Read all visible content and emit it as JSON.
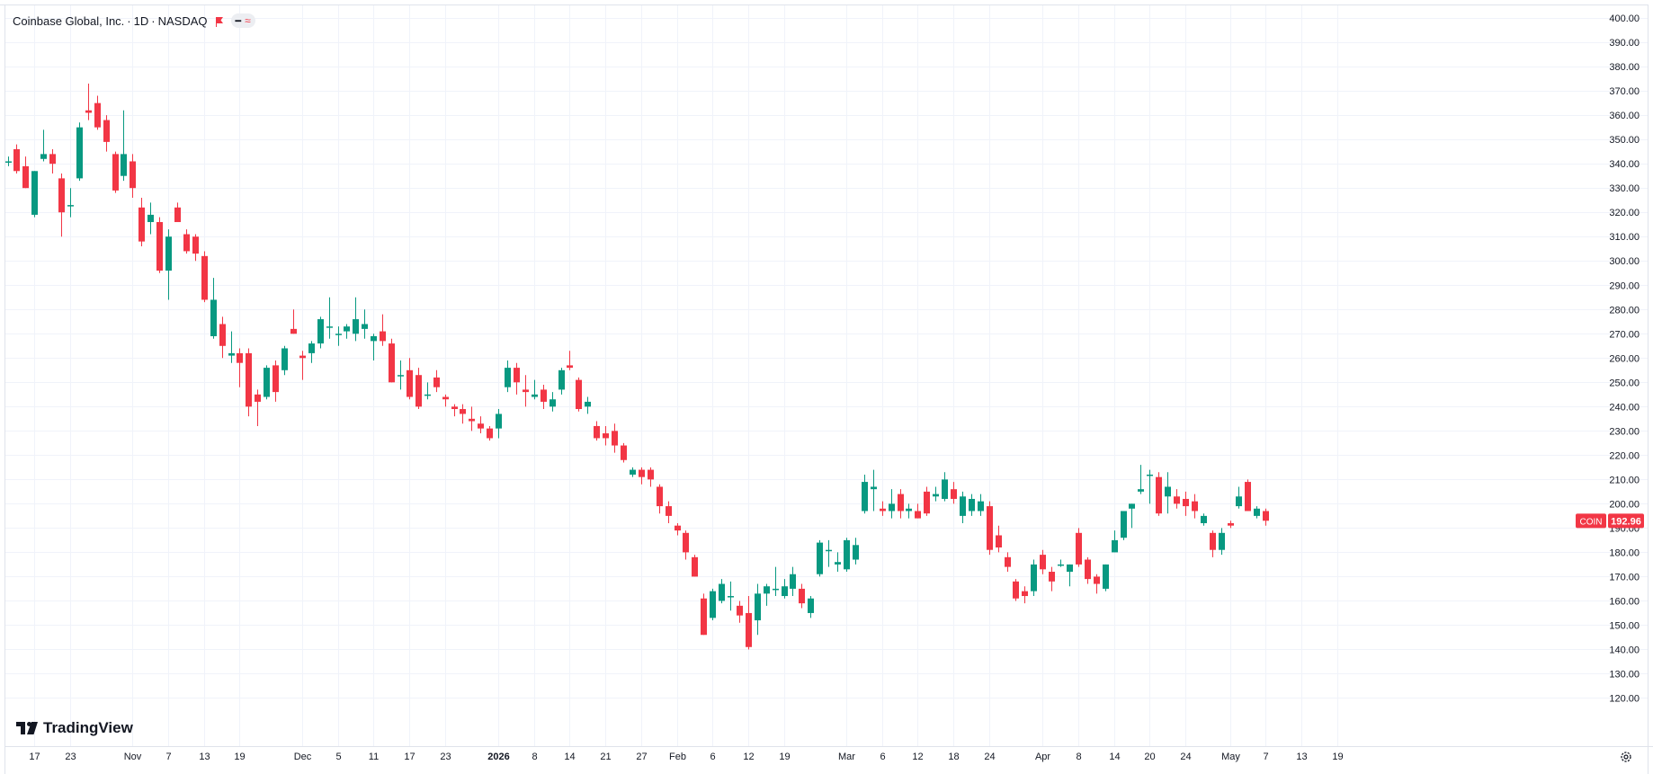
{
  "header": {
    "symbol_name": "Coinbase Global, Inc.",
    "interval": "1D",
    "exchange": "NASDAQ",
    "separator": "·",
    "pill_dash": "━",
    "pill_approx": "≈"
  },
  "logo": {
    "text": "TradingView",
    "icon": "tradingview-logo-icon"
  },
  "colors": {
    "up": "#089981",
    "down": "#f23645",
    "grid": "#f0f3fa",
    "text": "#131722",
    "axis_text": "#131722"
  },
  "price_label": {
    "ticker": "COIN",
    "value": "192.96",
    "numeric": 192.96
  },
  "settings_icon": "gear-icon",
  "chart_data": {
    "type": "candlestick",
    "title": "Coinbase Global, Inc. · 1D · NASDAQ",
    "ylim": [
      115,
      403
    ],
    "y_ticks": [
      120,
      130,
      140,
      150,
      160,
      170,
      180,
      190,
      200,
      210,
      220,
      230,
      240,
      250,
      260,
      270,
      280,
      290,
      300,
      310,
      320,
      330,
      340,
      350,
      360,
      370,
      380,
      390,
      400
    ],
    "y_tick_labels": [
      "120.00",
      "130.00",
      "140.00",
      "150.00",
      "160.00",
      "170.00",
      "180.00",
      "190.00",
      "200.00",
      "210.00",
      "220.00",
      "230.00",
      "240.00",
      "250.00",
      "260.00",
      "270.00",
      "280.00",
      "290.00",
      "300.00",
      "310.00",
      "320.00",
      "330.00",
      "340.00",
      "350.00",
      "360.00",
      "370.00",
      "380.00",
      "390.00",
      "400.00"
    ],
    "x_ticks": [
      {
        "label": "17",
        "index": 3
      },
      {
        "label": "23",
        "index": 7
      },
      {
        "label": "Nov",
        "index": 14,
        "bold": false
      },
      {
        "label": "7",
        "index": 18
      },
      {
        "label": "13",
        "index": 22
      },
      {
        "label": "19",
        "index": 26
      },
      {
        "label": "Dec",
        "index": 33
      },
      {
        "label": "5",
        "index": 37
      },
      {
        "label": "11",
        "index": 41
      },
      {
        "label": "17",
        "index": 45
      },
      {
        "label": "23",
        "index": 49
      },
      {
        "label": "2026",
        "index": 55,
        "bold": true
      },
      {
        "label": "8",
        "index": 59
      },
      {
        "label": "14",
        "index": 63
      },
      {
        "label": "21",
        "index": 67
      },
      {
        "label": "27",
        "index": 71
      },
      {
        "label": "Feb",
        "index": 75
      },
      {
        "label": "6",
        "index": 79
      },
      {
        "label": "12",
        "index": 83
      },
      {
        "label": "19",
        "index": 87
      },
      {
        "label": "Mar",
        "index": 94
      },
      {
        "label": "6",
        "index": 98
      },
      {
        "label": "12",
        "index": 102
      },
      {
        "label": "18",
        "index": 106
      },
      {
        "label": "24",
        "index": 110
      },
      {
        "label": "Apr",
        "index": 116
      },
      {
        "label": "8",
        "index": 120
      },
      {
        "label": "14",
        "index": 124
      },
      {
        "label": "20",
        "index": 128
      },
      {
        "label": "24",
        "index": 132
      },
      {
        "label": "May",
        "index": 137
      },
      {
        "label": "7",
        "index": 141
      },
      {
        "label": "13",
        "index": 145
      },
      {
        "label": "19",
        "index": 149
      }
    ],
    "candles": [
      {
        "o": 341,
        "h": 343,
        "l": 339,
        "c": 341
      },
      {
        "o": 346,
        "h": 348,
        "l": 336,
        "c": 337
      },
      {
        "o": 339,
        "h": 343,
        "l": 330,
        "c": 330
      },
      {
        "o": 319,
        "h": 337,
        "l": 318,
        "c": 337
      },
      {
        "o": 342,
        "h": 354,
        "l": 341,
        "c": 344
      },
      {
        "o": 344,
        "h": 346,
        "l": 336,
        "c": 340
      },
      {
        "o": 334,
        "h": 336,
        "l": 310,
        "c": 320
      },
      {
        "o": 323,
        "h": 330,
        "l": 318,
        "c": 323
      },
      {
        "o": 334,
        "h": 357,
        "l": 333,
        "c": 355
      },
      {
        "o": 362,
        "h": 373,
        "l": 358,
        "c": 361
      },
      {
        "o": 365,
        "h": 368,
        "l": 354,
        "c": 355
      },
      {
        "o": 358,
        "h": 360,
        "l": 345,
        "c": 349
      },
      {
        "o": 344,
        "h": 345,
        "l": 328,
        "c": 329
      },
      {
        "o": 335,
        "h": 362,
        "l": 333,
        "c": 344
      },
      {
        "o": 341,
        "h": 344,
        "l": 326,
        "c": 330
      },
      {
        "o": 322,
        "h": 326,
        "l": 306,
        "c": 308
      },
      {
        "o": 316,
        "h": 324,
        "l": 311,
        "c": 319
      },
      {
        "o": 316,
        "h": 318,
        "l": 295,
        "c": 296
      },
      {
        "o": 296,
        "h": 313,
        "l": 284,
        "c": 310
      },
      {
        "o": 322,
        "h": 324,
        "l": 316,
        "c": 316
      },
      {
        "o": 311,
        "h": 313,
        "l": 303,
        "c": 304
      },
      {
        "o": 310,
        "h": 311,
        "l": 300,
        "c": 303
      },
      {
        "o": 302,
        "h": 304,
        "l": 283,
        "c": 284
      },
      {
        "o": 269,
        "h": 293,
        "l": 268,
        "c": 284
      },
      {
        "o": 274,
        "h": 277,
        "l": 260,
        "c": 265
      },
      {
        "o": 261,
        "h": 271,
        "l": 258,
        "c": 262
      },
      {
        "o": 262,
        "h": 264,
        "l": 248,
        "c": 258
      },
      {
        "o": 262,
        "h": 264,
        "l": 236,
        "c": 240
      },
      {
        "o": 245,
        "h": 247,
        "l": 232,
        "c": 242
      },
      {
        "o": 244,
        "h": 257,
        "l": 243,
        "c": 256
      },
      {
        "o": 257,
        "h": 259,
        "l": 242,
        "c": 246
      },
      {
        "o": 255,
        "h": 265,
        "l": 253,
        "c": 264
      },
      {
        "o": 272,
        "h": 280,
        "l": 270,
        "c": 270
      },
      {
        "o": 261,
        "h": 263,
        "l": 251,
        "c": 260
      },
      {
        "o": 262,
        "h": 267,
        "l": 258,
        "c": 266
      },
      {
        "o": 266,
        "h": 277,
        "l": 264,
        "c": 276
      },
      {
        "o": 273,
        "h": 285,
        "l": 268,
        "c": 273
      },
      {
        "o": 270,
        "h": 273,
        "l": 265,
        "c": 270
      },
      {
        "o": 271,
        "h": 274,
        "l": 268,
        "c": 273
      },
      {
        "o": 270,
        "h": 285,
        "l": 267,
        "c": 276
      },
      {
        "o": 272,
        "h": 280,
        "l": 268,
        "c": 274
      },
      {
        "o": 267,
        "h": 270,
        "l": 259,
        "c": 269
      },
      {
        "o": 271,
        "h": 278,
        "l": 265,
        "c": 267
      },
      {
        "o": 266,
        "h": 268,
        "l": 250,
        "c": 250
      },
      {
        "o": 253,
        "h": 259,
        "l": 247,
        "c": 253
      },
      {
        "o": 255,
        "h": 260,
        "l": 243,
        "c": 244
      },
      {
        "o": 253,
        "h": 256,
        "l": 239,
        "c": 240
      },
      {
        "o": 245,
        "h": 250,
        "l": 243,
        "c": 245
      },
      {
        "o": 252,
        "h": 255,
        "l": 246,
        "c": 248
      },
      {
        "o": 244,
        "h": 245,
        "l": 240,
        "c": 243
      },
      {
        "o": 240,
        "h": 241,
        "l": 236,
        "c": 239
      },
      {
        "o": 239,
        "h": 241,
        "l": 233,
        "c": 237
      },
      {
        "o": 235,
        "h": 240,
        "l": 230,
        "c": 234
      },
      {
        "o": 233,
        "h": 236,
        "l": 229,
        "c": 231
      },
      {
        "o": 231,
        "h": 232,
        "l": 226,
        "c": 227
      },
      {
        "o": 231,
        "h": 239,
        "l": 227,
        "c": 237
      },
      {
        "o": 248,
        "h": 259,
        "l": 246,
        "c": 256
      },
      {
        "o": 256,
        "h": 258,
        "l": 245,
        "c": 250
      },
      {
        "o": 247,
        "h": 253,
        "l": 240,
        "c": 246
      },
      {
        "o": 244,
        "h": 251,
        "l": 243,
        "c": 245
      },
      {
        "o": 247,
        "h": 249,
        "l": 239,
        "c": 242
      },
      {
        "o": 240,
        "h": 246,
        "l": 238,
        "c": 243
      },
      {
        "o": 247,
        "h": 256,
        "l": 245,
        "c": 255
      },
      {
        "o": 257,
        "h": 263,
        "l": 255,
        "c": 256
      },
      {
        "o": 251,
        "h": 252,
        "l": 238,
        "c": 239
      },
      {
        "o": 240,
        "h": 244,
        "l": 237,
        "c": 242
      },
      {
        "o": 232,
        "h": 234,
        "l": 226,
        "c": 227
      },
      {
        "o": 229,
        "h": 232,
        "l": 224,
        "c": 227
      },
      {
        "o": 230,
        "h": 233,
        "l": 221,
        "c": 224
      },
      {
        "o": 224,
        "h": 225,
        "l": 217,
        "c": 218
      },
      {
        "o": 212,
        "h": 215,
        "l": 211,
        "c": 214
      },
      {
        "o": 214,
        "h": 215,
        "l": 208,
        "c": 211
      },
      {
        "o": 214,
        "h": 215,
        "l": 207,
        "c": 210
      },
      {
        "o": 207,
        "h": 208,
        "l": 196,
        "c": 199
      },
      {
        "o": 199,
        "h": 201,
        "l": 192,
        "c": 195
      },
      {
        "o": 191,
        "h": 192,
        "l": 187,
        "c": 189
      },
      {
        "o": 188,
        "h": 189,
        "l": 177,
        "c": 180
      },
      {
        "o": 178,
        "h": 179,
        "l": 170,
        "c": 170
      },
      {
        "o": 161,
        "h": 163,
        "l": 146,
        "c": 146
      },
      {
        "o": 153,
        "h": 165,
        "l": 152,
        "c": 164
      },
      {
        "o": 160,
        "h": 169,
        "l": 159,
        "c": 167
      },
      {
        "o": 162,
        "h": 168,
        "l": 156,
        "c": 162
      },
      {
        "o": 158,
        "h": 160,
        "l": 151,
        "c": 154
      },
      {
        "o": 155,
        "h": 162,
        "l": 140,
        "c": 141
      },
      {
        "o": 152,
        "h": 167,
        "l": 146,
        "c": 163
      },
      {
        "o": 163,
        "h": 167,
        "l": 158,
        "c": 166
      },
      {
        "o": 165,
        "h": 174,
        "l": 162,
        "c": 165
      },
      {
        "o": 162,
        "h": 169,
        "l": 161,
        "c": 166
      },
      {
        "o": 165,
        "h": 174,
        "l": 162,
        "c": 171
      },
      {
        "o": 165,
        "h": 167,
        "l": 157,
        "c": 159
      },
      {
        "o": 155,
        "h": 162,
        "l": 153,
        "c": 161
      },
      {
        "o": 171,
        "h": 185,
        "l": 170,
        "c": 184
      },
      {
        "o": 181,
        "h": 185,
        "l": 174,
        "c": 181
      },
      {
        "o": 175,
        "h": 180,
        "l": 172,
        "c": 176
      },
      {
        "o": 173,
        "h": 186,
        "l": 172,
        "c": 185
      },
      {
        "o": 177,
        "h": 186,
        "l": 175,
        "c": 183
      },
      {
        "o": 197,
        "h": 212,
        "l": 196,
        "c": 209
      },
      {
        "o": 206,
        "h": 214,
        "l": 197,
        "c": 207
      },
      {
        "o": 198,
        "h": 201,
        "l": 195,
        "c": 197
      },
      {
        "o": 197,
        "h": 206,
        "l": 194,
        "c": 200
      },
      {
        "o": 204,
        "h": 206,
        "l": 194,
        "c": 197
      },
      {
        "o": 197,
        "h": 200,
        "l": 194,
        "c": 198
      },
      {
        "o": 197,
        "h": 200,
        "l": 194,
        "c": 194
      },
      {
        "o": 205,
        "h": 207,
        "l": 195,
        "c": 196
      },
      {
        "o": 203,
        "h": 207,
        "l": 201,
        "c": 204
      },
      {
        "o": 202,
        "h": 213,
        "l": 201,
        "c": 210
      },
      {
        "o": 206,
        "h": 209,
        "l": 200,
        "c": 202
      },
      {
        "o": 195,
        "h": 205,
        "l": 192,
        "c": 203
      },
      {
        "o": 197,
        "h": 204,
        "l": 195,
        "c": 202
      },
      {
        "o": 197,
        "h": 204,
        "l": 195,
        "c": 201
      },
      {
        "o": 199,
        "h": 201,
        "l": 179,
        "c": 181
      },
      {
        "o": 187,
        "h": 191,
        "l": 180,
        "c": 182
      },
      {
        "o": 178,
        "h": 180,
        "l": 172,
        "c": 174
      },
      {
        "o": 168,
        "h": 169,
        "l": 160,
        "c": 161
      },
      {
        "o": 164,
        "h": 166,
        "l": 159,
        "c": 162
      },
      {
        "o": 164,
        "h": 177,
        "l": 162,
        "c": 175
      },
      {
        "o": 179,
        "h": 181,
        "l": 171,
        "c": 173
      },
      {
        "o": 172,
        "h": 174,
        "l": 164,
        "c": 168
      },
      {
        "o": 175,
        "h": 177,
        "l": 174,
        "c": 175
      },
      {
        "o": 172,
        "h": 175,
        "l": 166,
        "c": 175
      },
      {
        "o": 188,
        "h": 190,
        "l": 174,
        "c": 175
      },
      {
        "o": 177,
        "h": 178,
        "l": 167,
        "c": 169
      },
      {
        "o": 170,
        "h": 171,
        "l": 163,
        "c": 167
      },
      {
        "o": 165,
        "h": 175,
        "l": 164,
        "c": 175
      },
      {
        "o": 180,
        "h": 189,
        "l": 180,
        "c": 185
      },
      {
        "o": 186,
        "h": 196,
        "l": 185,
        "c": 197
      },
      {
        "o": 198,
        "h": 200,
        "l": 190,
        "c": 200
      },
      {
        "o": 205,
        "h": 216,
        "l": 204,
        "c": 206
      },
      {
        "o": 212,
        "h": 214,
        "l": 200,
        "c": 212
      },
      {
        "o": 211,
        "h": 213,
        "l": 195,
        "c": 196
      },
      {
        "o": 203,
        "h": 213,
        "l": 196,
        "c": 207
      },
      {
        "o": 203,
        "h": 206,
        "l": 198,
        "c": 200
      },
      {
        "o": 202,
        "h": 205,
        "l": 195,
        "c": 199
      },
      {
        "o": 201,
        "h": 204,
        "l": 194,
        "c": 197
      },
      {
        "o": 192,
        "h": 196,
        "l": 191,
        "c": 195
      },
      {
        "o": 188,
        "h": 189,
        "l": 178,
        "c": 181
      },
      {
        "o": 181,
        "h": 190,
        "l": 179,
        "c": 188
      },
      {
        "o": 192,
        "h": 193,
        "l": 190,
        "c": 191
      },
      {
        "o": 199,
        "h": 207,
        "l": 198,
        "c": 203
      },
      {
        "o": 209,
        "h": 210,
        "l": 197,
        "c": 197
      },
      {
        "o": 195,
        "h": 199,
        "l": 194,
        "c": 198
      },
      {
        "o": 197,
        "h": 198,
        "l": 191,
        "c": 193
      }
    ]
  }
}
